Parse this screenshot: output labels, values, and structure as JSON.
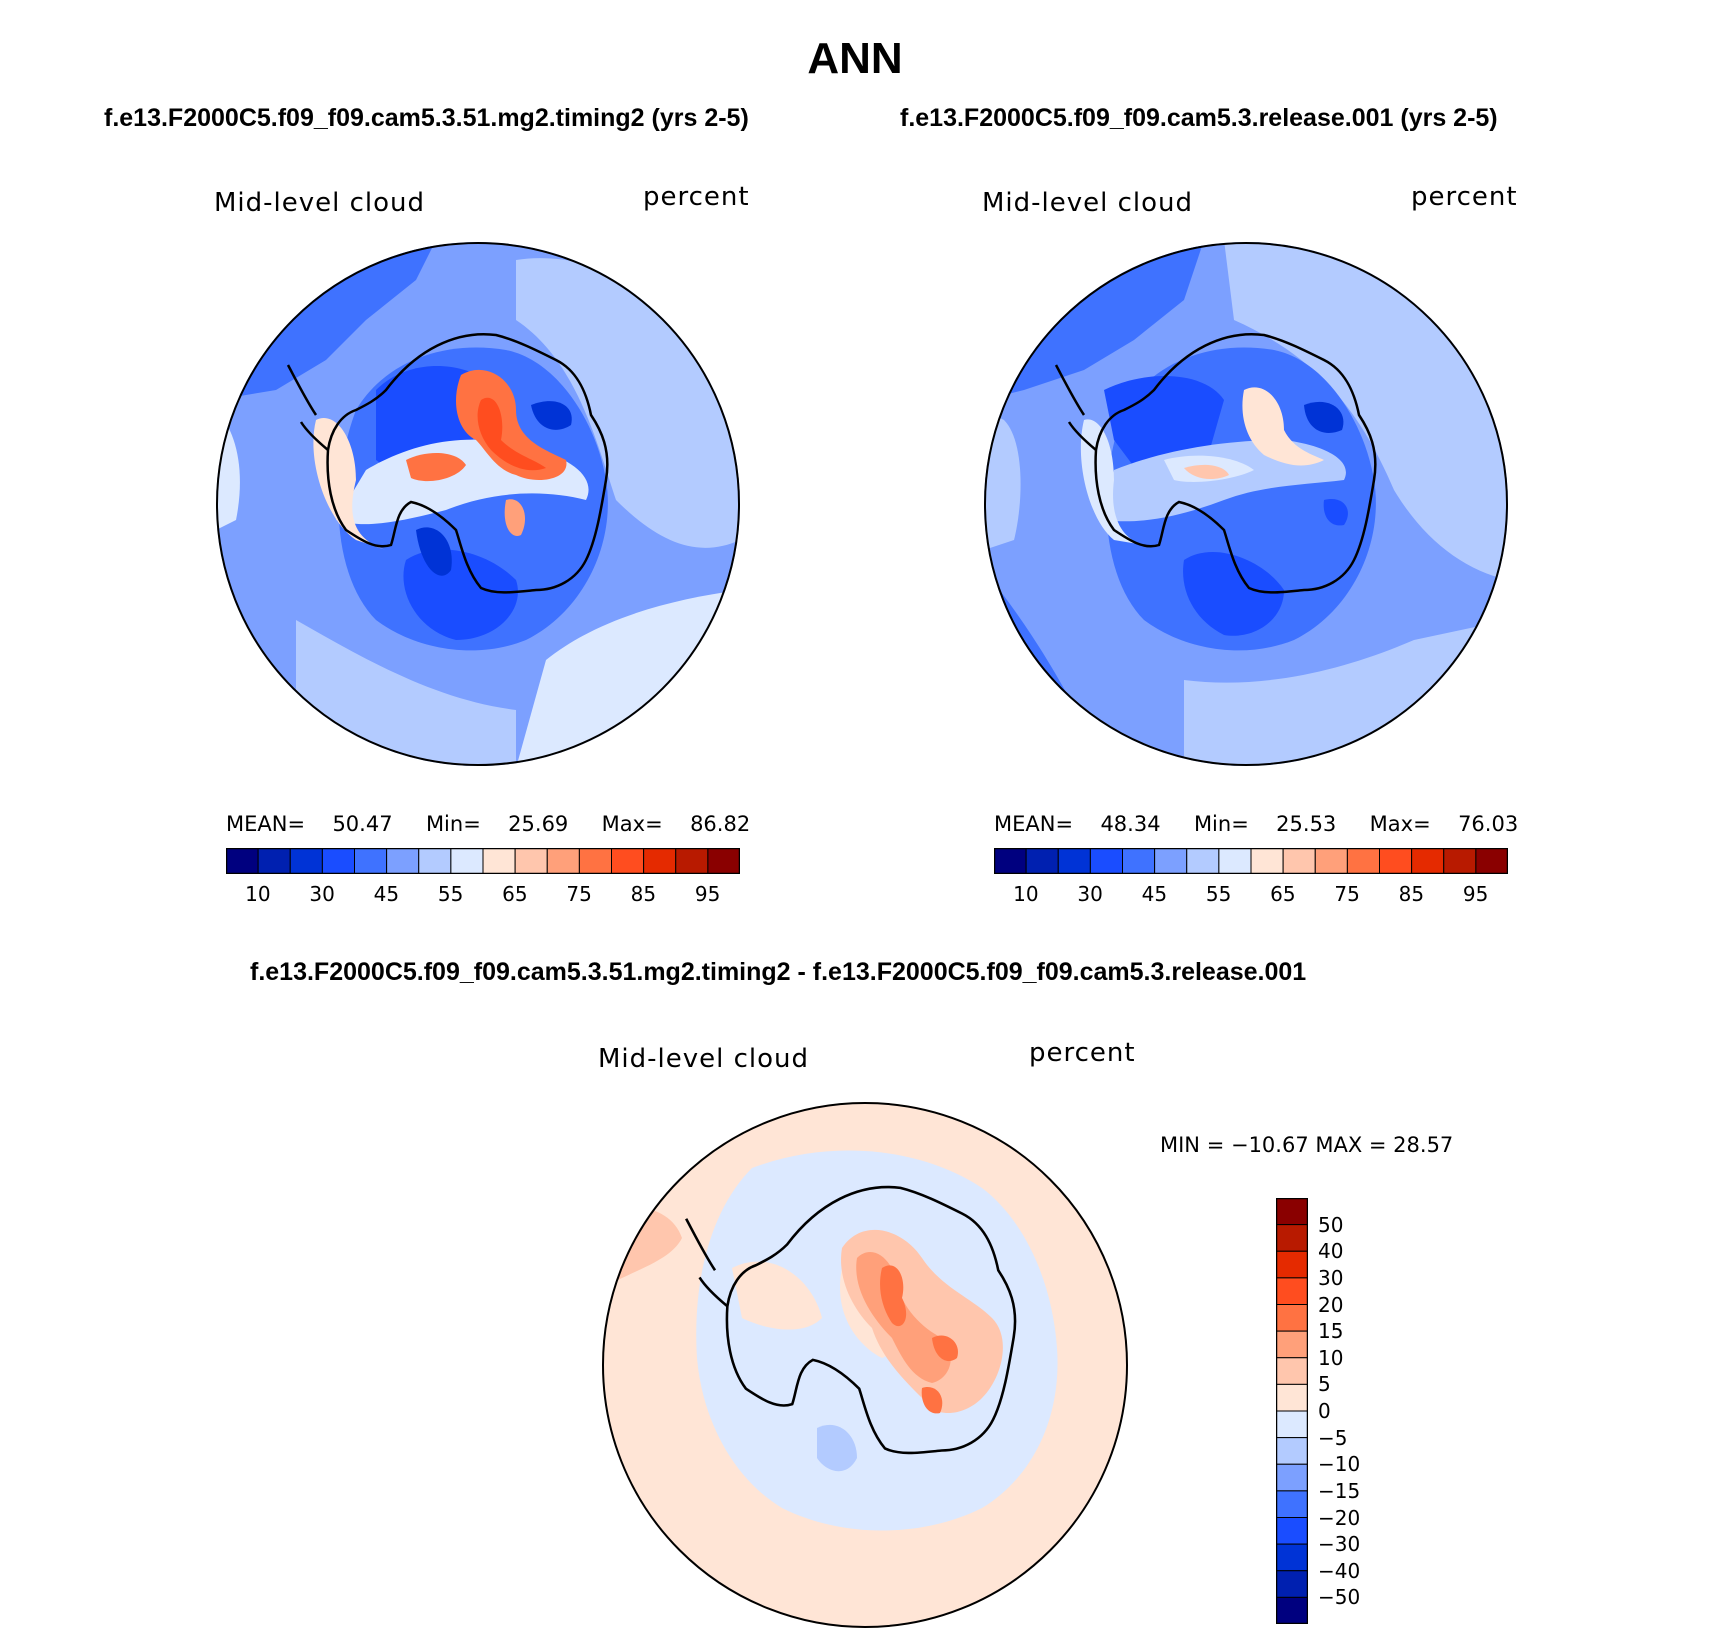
{
  "figure": {
    "title": "ANN"
  },
  "panels": [
    {
      "case_title": "f.e13.F2000C5.f09_f09.cam5.3.51.mg2.timing2 (yrs 2-5)",
      "variable_label": "Mid-level cloud",
      "units_label": "percent",
      "stats": {
        "mean_label": "MEAN=",
        "mean": "50.47",
        "min_label": "Min=",
        "min": "25.69",
        "max_label": "Max=",
        "max": "86.82"
      }
    },
    {
      "case_title": "f.e13.F2000C5.f09_f09.cam5.3.release.001 (yrs 2-5)",
      "variable_label": "Mid-level cloud",
      "units_label": "percent",
      "stats": {
        "mean_label": "MEAN=",
        "mean": "48.34",
        "min_label": "Min=",
        "min": "25.53",
        "max_label": "Max=",
        "max": "76.03"
      }
    }
  ],
  "difference_panel": {
    "case_title": "f.e13.F2000C5.f09_f09.cam5.3.51.mg2.timing2 - f.e13.F2000C5.f09_f09.cam5.3.release.001",
    "variable_label": "Mid-level cloud",
    "units_label": "percent",
    "stats_text": "MIN = −10.67 MAX =   28.57"
  },
  "colorbar_main": {
    "tick_labels": [
      "10",
      "30",
      "45",
      "55",
      "65",
      "75",
      "85",
      "95"
    ],
    "colors": [
      "#00007f",
      "#0020b0",
      "#0033d6",
      "#1a4dff",
      "#3f72ff",
      "#7ca0ff",
      "#b3cbff",
      "#dce9ff",
      "#ffe5d6",
      "#ffc6ad",
      "#ffa07a",
      "#ff7242",
      "#ff4d1f",
      "#e52a00",
      "#b81a00",
      "#8a0000"
    ]
  },
  "colorbar_diff": {
    "tick_labels": [
      "50",
      "40",
      "30",
      "20",
      "15",
      "10",
      "5",
      "0",
      "−5",
      "−10",
      "−15",
      "−20",
      "−30",
      "−40",
      "−50"
    ],
    "colors_top_to_bottom": [
      "#8a0000",
      "#b81a00",
      "#e52a00",
      "#ff4d1f",
      "#ff7242",
      "#ffa07a",
      "#ffc6ad",
      "#ffe5d6",
      "#dce9ff",
      "#b3cbff",
      "#7ca0ff",
      "#3f72ff",
      "#1a4dff",
      "#0033d6",
      "#0020b0",
      "#00007f"
    ]
  }
}
